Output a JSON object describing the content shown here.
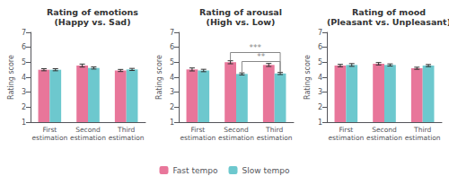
{
  "chart_data": [
    {
      "type": "bar",
      "title": "Rating of emotions\n(Happy vs. Sad)",
      "categories": [
        "First\nestimation",
        "Second\nestimation",
        "Third\nestimation"
      ],
      "ylabel": "Rating score",
      "ylim": [
        1,
        7
      ],
      "yticks": [
        1,
        2,
        3,
        4,
        5,
        6,
        7
      ],
      "grid": false,
      "series": [
        {
          "name": "Fast tempo",
          "color": "#E8769A",
          "values": [
            4.5,
            4.78,
            4.45
          ],
          "errors": [
            0.07,
            0.1,
            0.07
          ]
        },
        {
          "name": "Slow tempo",
          "color": "#6DC8CE",
          "values": [
            4.5,
            4.62,
            4.52
          ],
          "errors": [
            0.07,
            0.07,
            0.07
          ]
        }
      ]
    },
    {
      "type": "bar",
      "title": "Rating of arousal\n(High vs. Low)",
      "categories": [
        "First\nestimation",
        "Second\nestimation",
        "Third\nestimation"
      ],
      "ylabel": "Rating score",
      "ylim": [
        1,
        7
      ],
      "yticks": [
        1,
        2,
        3,
        4,
        5,
        6,
        7
      ],
      "grid": false,
      "legend": "bottom",
      "series": [
        {
          "name": "Fast tempo",
          "color": "#E8769A",
          "values": [
            4.52,
            5.0,
            4.82
          ],
          "errors": [
            0.1,
            0.1,
            0.1
          ]
        },
        {
          "name": "Slow tempo",
          "color": "#6DC8CE",
          "values": [
            4.45,
            4.22,
            4.25
          ],
          "errors": [
            0.08,
            0.07,
            0.07
          ]
        }
      ],
      "annotations": [
        {
          "text": "***",
          "y": 5.65,
          "start": {
            "category": "Second\nestimation",
            "series": "Fast tempo",
            "y": 5.12
          },
          "end": {
            "category": "Third\nestimation",
            "series": "Slow tempo",
            "y": 4.37
          }
        },
        {
          "text": "**",
          "y": 5.05,
          "start": {
            "category": "Second\nestimation",
            "series": "Slow tempo",
            "y": 4.34
          },
          "end": {
            "category": "Third\nestimation",
            "series": "Slow tempo",
            "y": 4.37
          }
        }
      ]
    },
    {
      "type": "bar",
      "title": "Rating of mood\n(Pleasant vs. Unpleasant)",
      "categories": [
        "First\nestimation",
        "Second\nestimation",
        "Third\nestimation"
      ],
      "ylabel": "Rating score",
      "ylim": [
        1,
        7
      ],
      "yticks": [
        1,
        2,
        3,
        4,
        5,
        6,
        7
      ],
      "grid": false,
      "series": [
        {
          "name": "Fast tempo",
          "color": "#E8769A",
          "values": [
            4.78,
            4.9,
            4.6
          ],
          "errors": [
            0.08,
            0.08,
            0.07
          ]
        },
        {
          "name": "Slow tempo",
          "color": "#6DC8CE",
          "values": [
            4.82,
            4.82,
            4.78
          ],
          "errors": [
            0.09,
            0.07,
            0.07
          ]
        }
      ]
    }
  ]
}
